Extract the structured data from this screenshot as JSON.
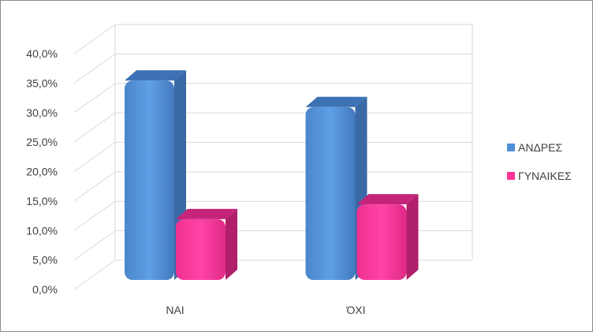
{
  "chart_data": {
    "type": "bar",
    "categories": [
      "ΝΑΙ",
      "ΌΧΙ"
    ],
    "series": [
      {
        "name": "ΑΝΔΡΕΣ",
        "values": [
          0.365,
          0.32
        ],
        "color": "#4f8fd8"
      },
      {
        "name": "ΓΥΝΑΙΚΕΣ",
        "values": [
          0.13,
          0.155
        ],
        "color": "#ff3399"
      }
    ],
    "ylim": [
      0,
      0.4
    ],
    "yticks": [
      "0,0%",
      "5,0%",
      "10,0%",
      "15,0%",
      "20,0%",
      "25,0%",
      "30,0%",
      "35,0%",
      "40,0%"
    ],
    "grid": true,
    "legend": "right",
    "style": "3d-column"
  }
}
